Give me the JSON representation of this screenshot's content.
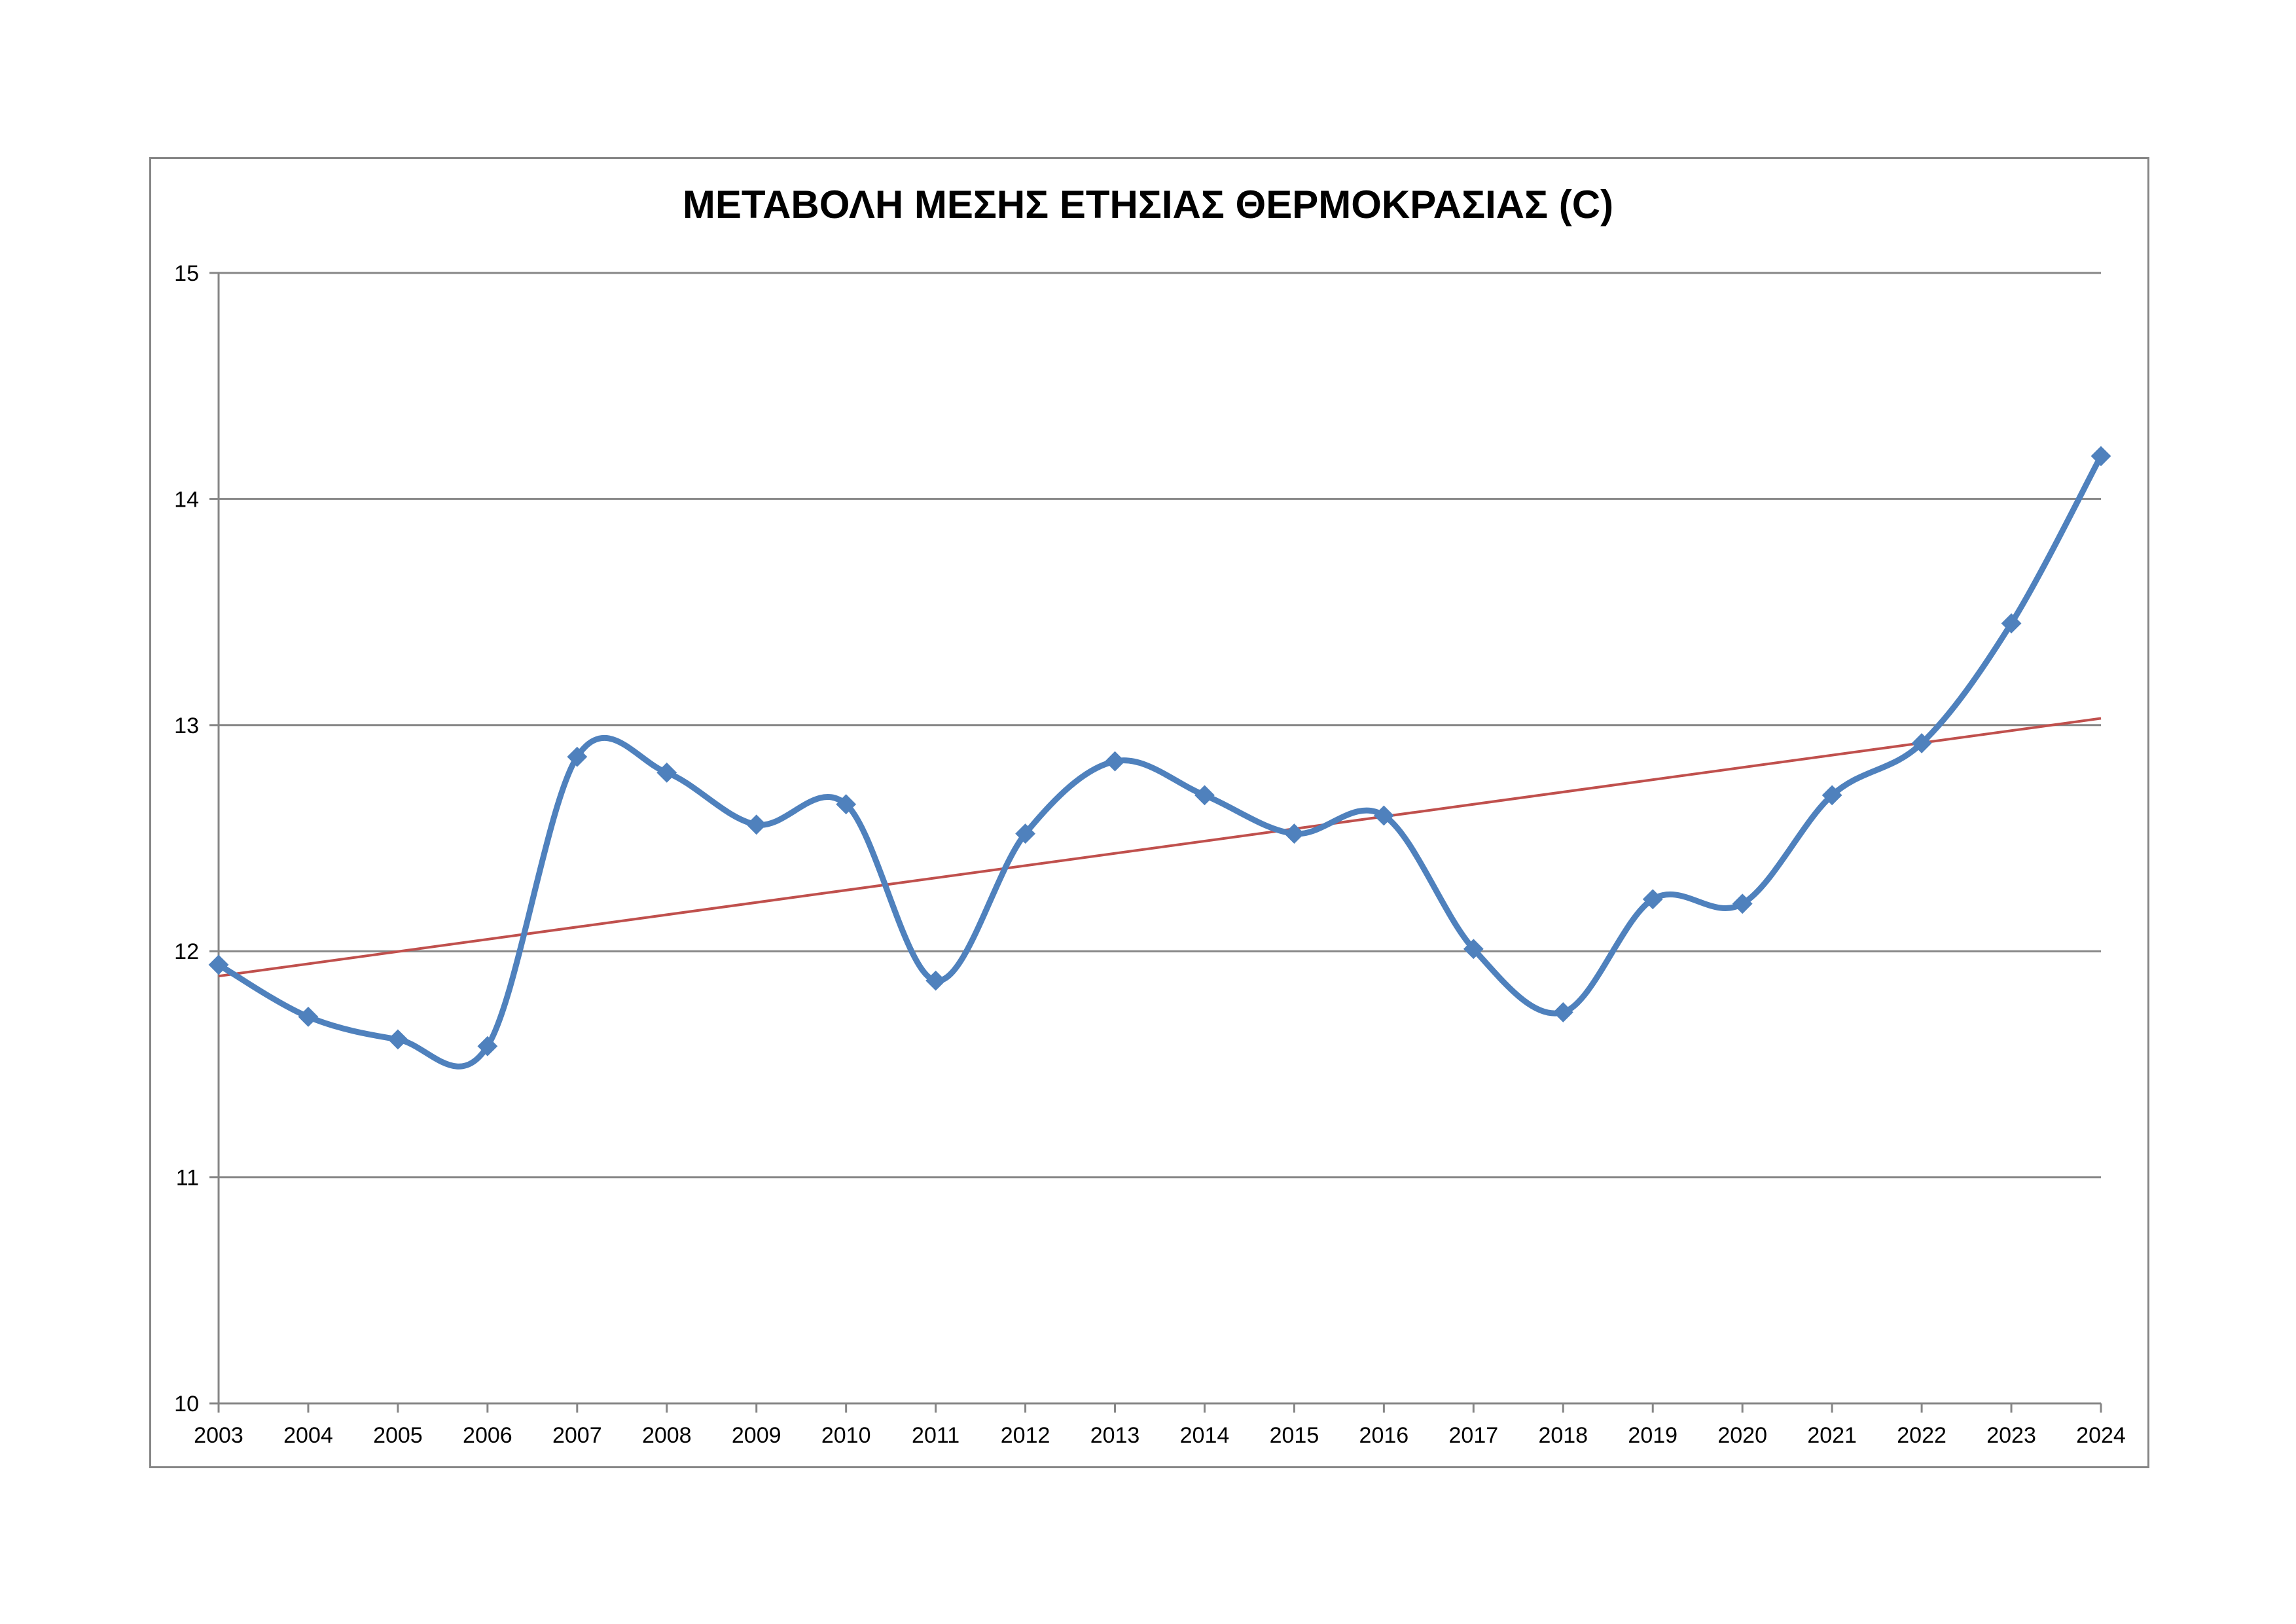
{
  "chart_data": {
    "type": "line",
    "title": "ΜΕΤΑΒΟΛΗ ΜΕΣΗΣ ΕΤΗΣΙΑΣ ΘΕΡΜΟΚΡΑΣΙΑΣ (C)",
    "xlabel": "",
    "ylabel": "",
    "ylim": [
      10,
      15
    ],
    "yticks": [
      10,
      11,
      12,
      13,
      14,
      15
    ],
    "grid": true,
    "legend": "none",
    "categories": [
      "2003",
      "2004",
      "2005",
      "2006",
      "2007",
      "2008",
      "2009",
      "2010",
      "2011",
      "2012",
      "2013",
      "2014",
      "2015",
      "2016",
      "2017",
      "2018",
      "2019",
      "2020",
      "2021",
      "2022",
      "2023",
      "2024"
    ],
    "series": [
      {
        "values": [
          11.94,
          11.71,
          11.61,
          11.58,
          12.86,
          12.79,
          12.56,
          12.65,
          11.87,
          12.52,
          12.84,
          12.69,
          12.52,
          12.6,
          12.01,
          11.73,
          12.23,
          12.21,
          12.69,
          12.92,
          13.45,
          14.19
        ],
        "color": "#4F81BD",
        "marker": "diamond",
        "smooth": true
      }
    ],
    "trendline": {
      "type": "linear",
      "color": "#C0504D",
      "start": 11.89,
      "end": 13.03
    }
  }
}
